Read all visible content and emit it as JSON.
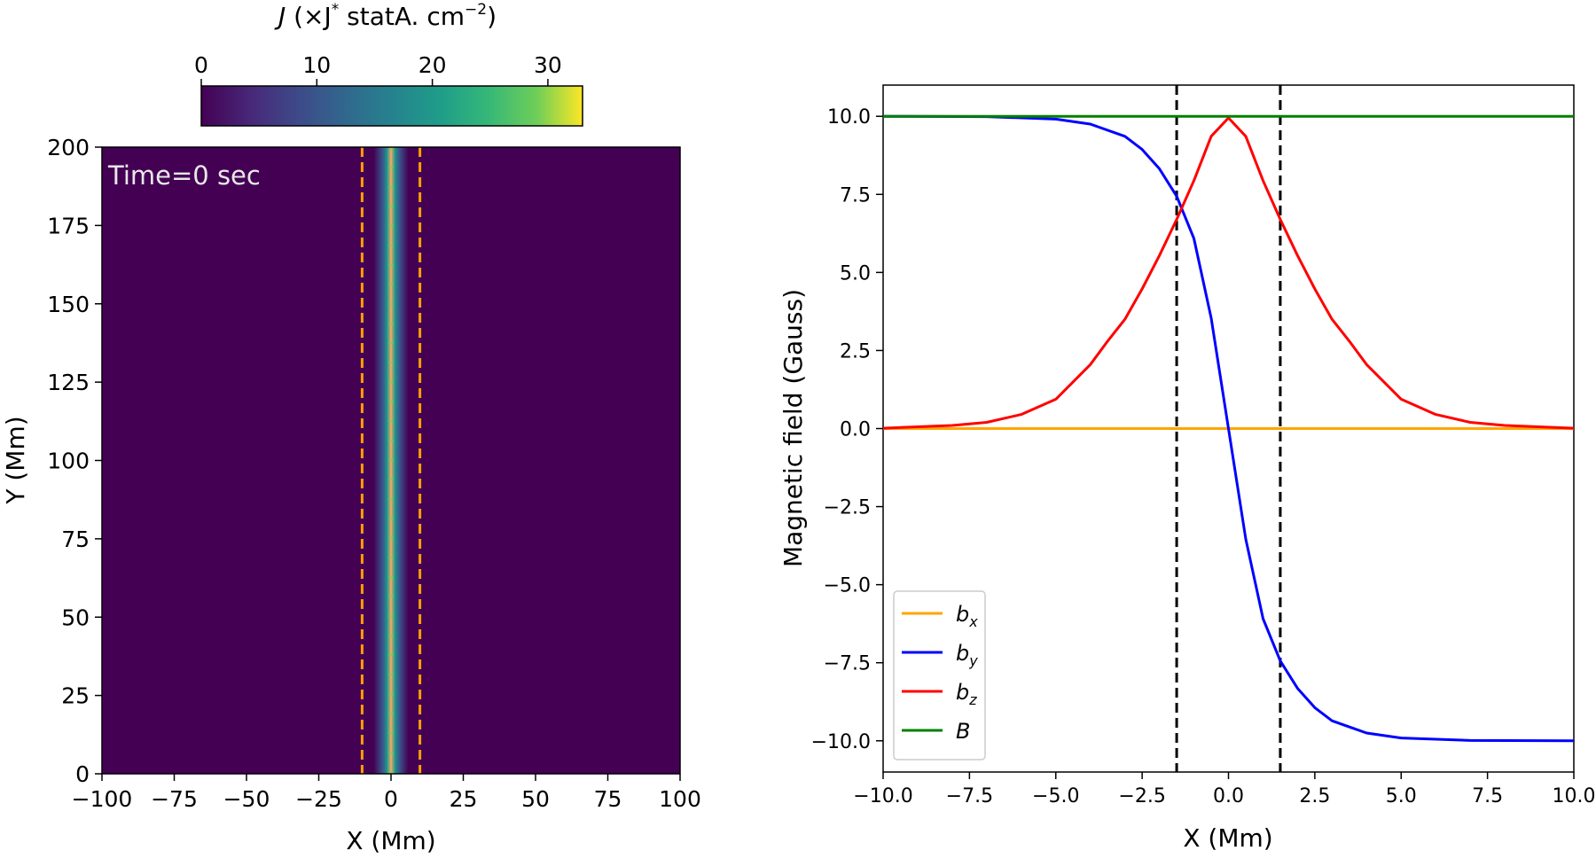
{
  "chart_data": [
    {
      "type": "heatmap",
      "colorbar": {
        "label_main": "J",
        "label_rest": " (×J",
        "label_sup1": "*",
        "label_mid": " statA. cm",
        "label_sup2": "−2",
        "label_close": ")",
        "ticks": [
          "0",
          "10",
          "20",
          "30"
        ],
        "tick_values": [
          0,
          10,
          20,
          30
        ],
        "range": [
          0,
          33
        ],
        "colormap": "viridis"
      },
      "annotation": "Time=0 sec",
      "xlabel": "X (Mm)",
      "ylabel": "Y (Mm)",
      "xlim": [
        -100,
        100
      ],
      "ylim": [
        0,
        200
      ],
      "xticks": [
        -100,
        -75,
        -50,
        -25,
        0,
        25,
        50,
        75,
        100
      ],
      "xtick_labels": [
        "−100",
        "−75",
        "−50",
        "−25",
        "0",
        "25",
        "50",
        "75",
        "100"
      ],
      "yticks": [
        0,
        25,
        50,
        75,
        100,
        125,
        150,
        175,
        200
      ],
      "ytick_labels": [
        "0",
        "25",
        "50",
        "75",
        "100",
        "125",
        "150",
        "175",
        "200"
      ],
      "current_sheet_center": 0,
      "dashed_boundaries_x": [
        -10,
        10
      ],
      "dashed_color": "#ff9f00",
      "background_color": "#440154"
    },
    {
      "type": "line",
      "xlabel": "X (Mm)",
      "ylabel": "Magnetic field (Gauss)",
      "xlim": [
        -10,
        10
      ],
      "ylim": [
        -11,
        11
      ],
      "xticks": [
        -10,
        -7.5,
        -5,
        -2.5,
        0,
        2.5,
        5,
        7.5,
        10
      ],
      "xtick_labels": [
        "−10.0",
        "−7.5",
        "−5.0",
        "−2.5",
        "0.0",
        "2.5",
        "5.0",
        "7.5",
        "10.0"
      ],
      "yticks": [
        -10,
        -7.5,
        -5,
        -2.5,
        0,
        2.5,
        5,
        7.5,
        10
      ],
      "ytick_labels": [
        "−10.0",
        "−7.5",
        "−5.0",
        "−2.5",
        "0.0",
        "2.5",
        "5.0",
        "7.5",
        "10.0"
      ],
      "vertical_dashed_x": [
        -1.5,
        1.5
      ],
      "legend_position": "lower-left",
      "series": [
        {
          "name": "b",
          "sub": "x",
          "color": "#ffa500",
          "x": [
            -10,
            10
          ],
          "y": [
            0,
            0
          ]
        },
        {
          "name": "b",
          "sub": "y",
          "color": "#0000ff",
          "x": [
            -10,
            -7,
            -5,
            -4,
            -3,
            -2.5,
            -2,
            -1.5,
            -1,
            -0.5,
            0,
            0.5,
            1,
            1.5,
            2,
            2.5,
            3,
            4,
            5,
            7,
            10
          ],
          "y": [
            10,
            9.99,
            9.91,
            9.75,
            9.36,
            8.94,
            8.32,
            7.44,
            6.09,
            3.54,
            0,
            -3.54,
            -6.09,
            -7.44,
            -8.32,
            -8.94,
            -9.36,
            -9.75,
            -9.91,
            -9.99,
            -10
          ]
        },
        {
          "name": "b",
          "sub": "z",
          "color": "#ff0000",
          "x": [
            -10,
            -8,
            -7,
            -6,
            -5,
            -4,
            -3.5,
            -3,
            -2.5,
            -2,
            -1.5,
            -1,
            -0.5,
            0,
            0.5,
            1,
            1.5,
            2,
            2.5,
            3,
            3.5,
            4,
            5,
            6,
            7,
            8,
            10
          ],
          "y": [
            0.01,
            0.1,
            0.2,
            0.45,
            0.94,
            2.05,
            2.8,
            3.5,
            4.47,
            5.54,
            6.7,
            7.94,
            9.36,
            9.95,
            9.36,
            7.94,
            6.7,
            5.54,
            4.47,
            3.5,
            2.8,
            2.05,
            0.94,
            0.45,
            0.2,
            0.1,
            0.01
          ]
        },
        {
          "name": "B",
          "sub": "",
          "color": "#008000",
          "x": [
            -10,
            10
          ],
          "y": [
            10,
            10
          ]
        }
      ]
    }
  ]
}
